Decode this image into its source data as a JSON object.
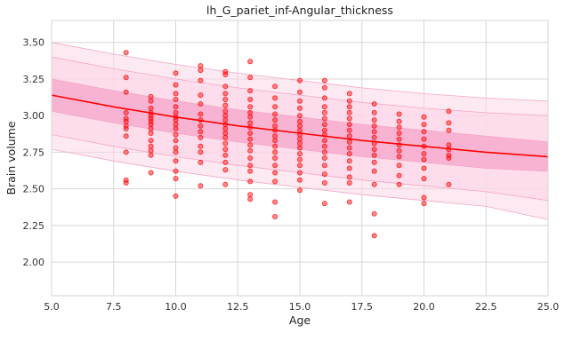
{
  "chart_data": {
    "type": "scatter",
    "title": "lh_G_pariet_inf-Angular_thickness",
    "xlabel": "Age",
    "ylabel": "Brain volume",
    "xlim": [
      5.0,
      25.0
    ],
    "ylim": [
      1.77,
      3.65
    ],
    "grid": true,
    "x_ticks": [
      "5.0",
      "7.5",
      "10.0",
      "12.5",
      "15.0",
      "17.5",
      "20.0",
      "22.5",
      "25.0"
    ],
    "y_ticks": [
      "2.00",
      "2.25",
      "2.50",
      "2.75",
      "3.00",
      "3.25",
      "3.50"
    ],
    "colors": {
      "points": "#ff0000",
      "fit_line": "#ff0000",
      "band_inner": "#f7a1c8",
      "band_outer": "#fcd7e8",
      "band_edge": "#f3a6c6",
      "grid": "#d6d6d6"
    },
    "fit_curve": {
      "x": [
        5,
        7.5,
        10,
        12.5,
        15,
        17.5,
        20,
        22.5,
        25
      ],
      "y": [
        3.14,
        3.06,
        2.99,
        2.93,
        2.88,
        2.83,
        2.79,
        2.75,
        2.72
      ]
    },
    "bands": [
      {
        "level": "outer",
        "lower": [
          2.77,
          2.69,
          2.62,
          2.56,
          2.51,
          2.46,
          2.42,
          2.38,
          2.29
        ],
        "upper": [
          3.5,
          3.42,
          3.35,
          3.29,
          3.24,
          3.19,
          3.15,
          3.12,
          3.1
        ]
      },
      {
        "level": "middle",
        "lower": [
          2.87,
          2.79,
          2.72,
          2.66,
          2.61,
          2.56,
          2.52,
          2.48,
          2.42
        ],
        "upper": [
          3.4,
          3.32,
          3.25,
          3.19,
          3.14,
          3.09,
          3.05,
          3.02,
          3.0
        ]
      },
      {
        "level": "inner",
        "lower": [
          3.03,
          2.95,
          2.88,
          2.82,
          2.77,
          2.72,
          2.68,
          2.64,
          2.62
        ],
        "upper": [
          3.25,
          3.17,
          3.1,
          3.04,
          2.99,
          2.94,
          2.9,
          2.86,
          2.82
        ]
      }
    ],
    "points": [
      {
        "x": 8,
        "y": 3.43
      },
      {
        "x": 8,
        "y": 3.26
      },
      {
        "x": 8,
        "y": 3.16
      },
      {
        "x": 8,
        "y": 3.02
      },
      {
        "x": 8,
        "y": 2.98
      },
      {
        "x": 8,
        "y": 2.96
      },
      {
        "x": 8,
        "y": 2.93
      },
      {
        "x": 8,
        "y": 2.91
      },
      {
        "x": 8,
        "y": 2.86
      },
      {
        "x": 8,
        "y": 2.75
      },
      {
        "x": 8,
        "y": 2.56
      },
      {
        "x": 8,
        "y": 2.54
      },
      {
        "x": 9,
        "y": 3.13
      },
      {
        "x": 9,
        "y": 3.1
      },
      {
        "x": 9,
        "y": 3.05
      },
      {
        "x": 9,
        "y": 3.02
      },
      {
        "x": 9,
        "y": 3.0
      },
      {
        "x": 9,
        "y": 2.98
      },
      {
        "x": 9,
        "y": 2.96
      },
      {
        "x": 9,
        "y": 2.94
      },
      {
        "x": 9,
        "y": 2.91
      },
      {
        "x": 9,
        "y": 2.88
      },
      {
        "x": 9,
        "y": 2.83
      },
      {
        "x": 9,
        "y": 2.79
      },
      {
        "x": 9,
        "y": 2.76
      },
      {
        "x": 9,
        "y": 2.73
      },
      {
        "x": 9,
        "y": 2.61
      },
      {
        "x": 10,
        "y": 3.29
      },
      {
        "x": 10,
        "y": 3.21
      },
      {
        "x": 10,
        "y": 3.15
      },
      {
        "x": 10,
        "y": 3.11
      },
      {
        "x": 10,
        "y": 3.06
      },
      {
        "x": 10,
        "y": 3.02
      },
      {
        "x": 10,
        "y": 2.99
      },
      {
        "x": 10,
        "y": 2.97
      },
      {
        "x": 10,
        "y": 2.94
      },
      {
        "x": 10,
        "y": 2.91
      },
      {
        "x": 10,
        "y": 2.87
      },
      {
        "x": 10,
        "y": 2.83
      },
      {
        "x": 10,
        "y": 2.78
      },
      {
        "x": 10,
        "y": 2.75
      },
      {
        "x": 10,
        "y": 2.69
      },
      {
        "x": 10,
        "y": 2.62
      },
      {
        "x": 10,
        "y": 2.57
      },
      {
        "x": 10,
        "y": 2.45
      },
      {
        "x": 11,
        "y": 3.34
      },
      {
        "x": 11,
        "y": 3.31
      },
      {
        "x": 11,
        "y": 3.24
      },
      {
        "x": 11,
        "y": 3.14
      },
      {
        "x": 11,
        "y": 3.08
      },
      {
        "x": 11,
        "y": 3.01
      },
      {
        "x": 11,
        "y": 2.97
      },
      {
        "x": 11,
        "y": 2.93
      },
      {
        "x": 11,
        "y": 2.89
      },
      {
        "x": 11,
        "y": 2.85
      },
      {
        "x": 11,
        "y": 2.79
      },
      {
        "x": 11,
        "y": 2.75
      },
      {
        "x": 11,
        "y": 2.68
      },
      {
        "x": 11,
        "y": 2.52
      },
      {
        "x": 12,
        "y": 3.3
      },
      {
        "x": 12,
        "y": 3.28
      },
      {
        "x": 12,
        "y": 3.2
      },
      {
        "x": 12,
        "y": 3.15
      },
      {
        "x": 12,
        "y": 3.11
      },
      {
        "x": 12,
        "y": 3.07
      },
      {
        "x": 12,
        "y": 3.03
      },
      {
        "x": 12,
        "y": 3.0
      },
      {
        "x": 12,
        "y": 2.97
      },
      {
        "x": 12,
        "y": 2.94
      },
      {
        "x": 12,
        "y": 2.91
      },
      {
        "x": 12,
        "y": 2.88
      },
      {
        "x": 12,
        "y": 2.85
      },
      {
        "x": 12,
        "y": 2.81
      },
      {
        "x": 12,
        "y": 2.77
      },
      {
        "x": 12,
        "y": 2.73
      },
      {
        "x": 12,
        "y": 2.68
      },
      {
        "x": 12,
        "y": 2.63
      },
      {
        "x": 12,
        "y": 2.53
      },
      {
        "x": 13,
        "y": 3.37
      },
      {
        "x": 13,
        "y": 3.26
      },
      {
        "x": 13,
        "y": 3.17
      },
      {
        "x": 13,
        "y": 3.11
      },
      {
        "x": 13,
        "y": 3.06
      },
      {
        "x": 13,
        "y": 3.02
      },
      {
        "x": 13,
        "y": 2.99
      },
      {
        "x": 13,
        "y": 2.95
      },
      {
        "x": 13,
        "y": 2.92
      },
      {
        "x": 13,
        "y": 2.88
      },
      {
        "x": 13,
        "y": 2.84
      },
      {
        "x": 13,
        "y": 2.8
      },
      {
        "x": 13,
        "y": 2.76
      },
      {
        "x": 13,
        "y": 2.71
      },
      {
        "x": 13,
        "y": 2.66
      },
      {
        "x": 13,
        "y": 2.62
      },
      {
        "x": 13,
        "y": 2.55
      },
      {
        "x": 13,
        "y": 2.46
      },
      {
        "x": 13,
        "y": 2.43
      },
      {
        "x": 14,
        "y": 3.2
      },
      {
        "x": 14,
        "y": 3.12
      },
      {
        "x": 14,
        "y": 3.06
      },
      {
        "x": 14,
        "y": 3.01
      },
      {
        "x": 14,
        "y": 2.97
      },
      {
        "x": 14,
        "y": 2.93
      },
      {
        "x": 14,
        "y": 2.9
      },
      {
        "x": 14,
        "y": 2.86
      },
      {
        "x": 14,
        "y": 2.83
      },
      {
        "x": 14,
        "y": 2.79
      },
      {
        "x": 14,
        "y": 2.75
      },
      {
        "x": 14,
        "y": 2.71
      },
      {
        "x": 14,
        "y": 2.66
      },
      {
        "x": 14,
        "y": 2.61
      },
      {
        "x": 14,
        "y": 2.55
      },
      {
        "x": 14,
        "y": 2.41
      },
      {
        "x": 14,
        "y": 2.31
      },
      {
        "x": 15,
        "y": 3.24
      },
      {
        "x": 15,
        "y": 3.16
      },
      {
        "x": 15,
        "y": 3.1
      },
      {
        "x": 15,
        "y": 3.05
      },
      {
        "x": 15,
        "y": 3.0
      },
      {
        "x": 15,
        "y": 2.96
      },
      {
        "x": 15,
        "y": 2.93
      },
      {
        "x": 15,
        "y": 2.9
      },
      {
        "x": 15,
        "y": 2.87
      },
      {
        "x": 15,
        "y": 2.84
      },
      {
        "x": 15,
        "y": 2.81
      },
      {
        "x": 15,
        "y": 2.78
      },
      {
        "x": 15,
        "y": 2.74
      },
      {
        "x": 15,
        "y": 2.7
      },
      {
        "x": 15,
        "y": 2.66
      },
      {
        "x": 15,
        "y": 2.61
      },
      {
        "x": 15,
        "y": 2.56
      },
      {
        "x": 15,
        "y": 2.49
      },
      {
        "x": 16,
        "y": 3.24
      },
      {
        "x": 16,
        "y": 3.19
      },
      {
        "x": 16,
        "y": 3.12
      },
      {
        "x": 16,
        "y": 3.06
      },
      {
        "x": 16,
        "y": 3.02
      },
      {
        "x": 16,
        "y": 2.98
      },
      {
        "x": 16,
        "y": 2.94
      },
      {
        "x": 16,
        "y": 2.9
      },
      {
        "x": 16,
        "y": 2.87
      },
      {
        "x": 16,
        "y": 2.83
      },
      {
        "x": 16,
        "y": 2.79
      },
      {
        "x": 16,
        "y": 2.75
      },
      {
        "x": 16,
        "y": 2.71
      },
      {
        "x": 16,
        "y": 2.66
      },
      {
        "x": 16,
        "y": 2.6
      },
      {
        "x": 16,
        "y": 2.54
      },
      {
        "x": 16,
        "y": 2.4
      },
      {
        "x": 17,
        "y": 3.15
      },
      {
        "x": 17,
        "y": 3.1
      },
      {
        "x": 17,
        "y": 3.06
      },
      {
        "x": 17,
        "y": 3.02
      },
      {
        "x": 17,
        "y": 2.98
      },
      {
        "x": 17,
        "y": 2.94
      },
      {
        "x": 17,
        "y": 2.9
      },
      {
        "x": 17,
        "y": 2.86
      },
      {
        "x": 17,
        "y": 2.82
      },
      {
        "x": 17,
        "y": 2.78
      },
      {
        "x": 17,
        "y": 2.74
      },
      {
        "x": 17,
        "y": 2.69
      },
      {
        "x": 17,
        "y": 2.64
      },
      {
        "x": 17,
        "y": 2.58
      },
      {
        "x": 17,
        "y": 2.54
      },
      {
        "x": 17,
        "y": 2.41
      },
      {
        "x": 18,
        "y": 3.08
      },
      {
        "x": 18,
        "y": 3.02
      },
      {
        "x": 18,
        "y": 2.97
      },
      {
        "x": 18,
        "y": 2.93
      },
      {
        "x": 18,
        "y": 2.89
      },
      {
        "x": 18,
        "y": 2.85
      },
      {
        "x": 18,
        "y": 2.81
      },
      {
        "x": 18,
        "y": 2.77
      },
      {
        "x": 18,
        "y": 2.73
      },
      {
        "x": 18,
        "y": 2.68
      },
      {
        "x": 18,
        "y": 2.62
      },
      {
        "x": 18,
        "y": 2.53
      },
      {
        "x": 18,
        "y": 2.33
      },
      {
        "x": 18,
        "y": 2.18
      },
      {
        "x": 19,
        "y": 3.01
      },
      {
        "x": 19,
        "y": 2.96
      },
      {
        "x": 19,
        "y": 2.92
      },
      {
        "x": 19,
        "y": 2.88
      },
      {
        "x": 19,
        "y": 2.84
      },
      {
        "x": 19,
        "y": 2.8
      },
      {
        "x": 19,
        "y": 2.76
      },
      {
        "x": 19,
        "y": 2.72
      },
      {
        "x": 19,
        "y": 2.66
      },
      {
        "x": 19,
        "y": 2.59
      },
      {
        "x": 19,
        "y": 2.53
      },
      {
        "x": 20,
        "y": 2.99
      },
      {
        "x": 20,
        "y": 2.94
      },
      {
        "x": 20,
        "y": 2.89
      },
      {
        "x": 20,
        "y": 2.84
      },
      {
        "x": 20,
        "y": 2.79
      },
      {
        "x": 20,
        "y": 2.74
      },
      {
        "x": 20,
        "y": 2.7
      },
      {
        "x": 20,
        "y": 2.64
      },
      {
        "x": 20,
        "y": 2.57
      },
      {
        "x": 20,
        "y": 2.44
      },
      {
        "x": 20,
        "y": 2.4
      },
      {
        "x": 21,
        "y": 3.03
      },
      {
        "x": 21,
        "y": 2.95
      },
      {
        "x": 21,
        "y": 2.9
      },
      {
        "x": 21,
        "y": 2.8
      },
      {
        "x": 21,
        "y": 2.77
      },
      {
        "x": 21,
        "y": 2.73
      },
      {
        "x": 21,
        "y": 2.71
      },
      {
        "x": 21,
        "y": 2.53
      }
    ]
  }
}
